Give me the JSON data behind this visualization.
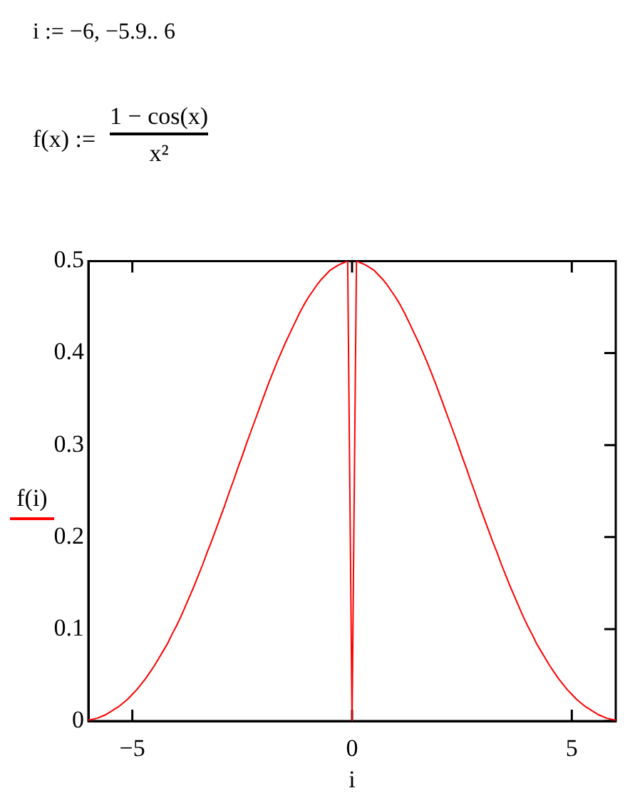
{
  "chart_data": {
    "type": "line",
    "annotations": [
      "i := −6, −5.9.. 6",
      "f(x) :=",
      "1 − cos(x)",
      "x²"
    ],
    "xlabel": "i",
    "x": [
      -6,
      -5.9,
      -5.8,
      -5.7,
      -5.6,
      -5.5,
      -5.4,
      -5.3,
      -5.2,
      -5.1,
      -5,
      -4.9,
      -4.8,
      -4.7,
      -4.6,
      -4.5,
      -4.4,
      -4.3,
      -4.2,
      -4.1,
      -4,
      -3.9,
      -3.8,
      -3.7,
      -3.6,
      -3.5,
      -3.4,
      -3.3,
      -3.2,
      -3.1,
      -3,
      -2.9,
      -2.8,
      -2.7,
      -2.6,
      -2.5,
      -2.4,
      -2.3,
      -2.2,
      -2.1,
      -2,
      -1.9,
      -1.8,
      -1.7,
      -1.6,
      -1.5,
      -1.4,
      -1.3,
      -1.2,
      -1.1,
      -1,
      -0.9,
      -0.8,
      -0.7,
      -0.6,
      -0.5,
      -0.4,
      -0.3,
      -0.2,
      -0.1,
      0,
      0.1,
      0.2,
      0.3,
      0.4,
      0.5,
      0.6,
      0.7,
      0.8,
      0.9,
      1,
      1.1,
      1.2,
      1.3,
      1.4,
      1.5,
      1.6,
      1.7,
      1.8,
      1.9,
      2,
      2.1,
      2.2,
      2.3,
      2.4,
      2.5,
      2.6,
      2.7,
      2.8,
      2.9,
      3,
      3.1,
      3.2,
      3.3,
      3.4,
      3.5,
      3.6,
      3.7,
      3.8,
      3.9,
      4,
      4.1,
      4.2,
      4.3,
      4.4,
      4.5,
      4.6,
      4.7,
      4.8,
      4.9,
      5,
      5.1,
      5.2,
      5.3,
      5.4,
      5.5,
      5.6,
      5.7,
      5.8,
      5.9,
      6
    ],
    "series": [
      {
        "name": "f(i)",
        "color": "#ff0000",
        "values": [
          0.001,
          0.002,
          0.003,
          0.005,
          0.007,
          0.01,
          0.013,
          0.016,
          0.02,
          0.024,
          0.029,
          0.034,
          0.04,
          0.046,
          0.053,
          0.06,
          0.068,
          0.076,
          0.084,
          0.094,
          0.103,
          0.113,
          0.124,
          0.135,
          0.146,
          0.158,
          0.17,
          0.183,
          0.195,
          0.208,
          0.221,
          0.234,
          0.248,
          0.261,
          0.275,
          0.288,
          0.302,
          0.315,
          0.328,
          0.341,
          0.354,
          0.367,
          0.379,
          0.391,
          0.402,
          0.413,
          0.423,
          0.433,
          0.443,
          0.452,
          0.46,
          0.467,
          0.474,
          0.48,
          0.485,
          0.49,
          0.493,
          0.496,
          0.498,
          0.5,
          0,
          0.5,
          0.498,
          0.496,
          0.493,
          0.49,
          0.485,
          0.48,
          0.474,
          0.467,
          0.46,
          0.452,
          0.443,
          0.433,
          0.423,
          0.413,
          0.402,
          0.391,
          0.379,
          0.367,
          0.354,
          0.341,
          0.328,
          0.315,
          0.302,
          0.288,
          0.275,
          0.261,
          0.248,
          0.234,
          0.221,
          0.208,
          0.195,
          0.183,
          0.17,
          0.158,
          0.146,
          0.135,
          0.124,
          0.113,
          0.103,
          0.094,
          0.084,
          0.076,
          0.068,
          0.06,
          0.053,
          0.046,
          0.04,
          0.034,
          0.029,
          0.024,
          0.02,
          0.016,
          0.013,
          0.01,
          0.007,
          0.005,
          0.003,
          0.002,
          0.001
        ]
      }
    ],
    "xlim": [
      -6,
      6
    ],
    "xticks": [
      {
        "value": -5,
        "label": "−5"
      },
      0,
      5
    ],
    "ylim": [
      0,
      0.5
    ],
    "yticks": [
      0,
      0.1,
      0.2,
      0.3,
      0.4,
      0.5
    ],
    "grid": false,
    "legend": "left",
    "marker": "none",
    "line_style": "solid"
  }
}
